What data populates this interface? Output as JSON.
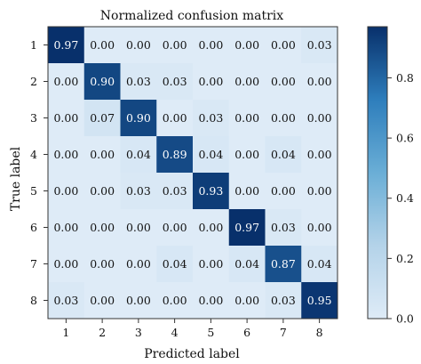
{
  "chart_data": {
    "type": "heatmap",
    "title": "Normalized confusion matrix",
    "xlabel": "Predicted label",
    "ylabel": "True label",
    "x_tick_labels": [
      "1",
      "2",
      "3",
      "4",
      "5",
      "6",
      "7",
      "8"
    ],
    "y_tick_labels": [
      "1",
      "2",
      "3",
      "4",
      "5",
      "6",
      "7",
      "8"
    ],
    "values": [
      [
        0.97,
        0.0,
        0.0,
        0.0,
        0.0,
        0.0,
        0.0,
        0.03
      ],
      [
        0.0,
        0.9,
        0.03,
        0.03,
        0.0,
        0.0,
        0.0,
        0.0
      ],
      [
        0.0,
        0.07,
        0.9,
        0.0,
        0.03,
        0.0,
        0.0,
        0.0
      ],
      [
        0.0,
        0.0,
        0.04,
        0.89,
        0.04,
        0.0,
        0.04,
        0.0
      ],
      [
        0.0,
        0.0,
        0.03,
        0.03,
        0.93,
        0.0,
        0.0,
        0.0
      ],
      [
        0.0,
        0.0,
        0.0,
        0.0,
        0.0,
        0.97,
        0.03,
        0.0
      ],
      [
        0.0,
        0.0,
        0.0,
        0.04,
        0.0,
        0.04,
        0.87,
        0.04
      ],
      [
        0.03,
        0.0,
        0.0,
        0.0,
        0.0,
        0.0,
        0.03,
        0.95
      ]
    ],
    "cell_labels": [
      [
        "0.97",
        "0.00",
        "0.00",
        "0.00",
        "0.00",
        "0.00",
        "0.00",
        "0.03"
      ],
      [
        "0.00",
        "0.90",
        "0.03",
        "0.03",
        "0.00",
        "0.00",
        "0.00",
        "0.00"
      ],
      [
        "0.00",
        "0.07",
        "0.90",
        "0.00",
        "0.03",
        "0.00",
        "0.00",
        "0.00"
      ],
      [
        "0.00",
        "0.00",
        "0.04",
        "0.89",
        "0.04",
        "0.00",
        "0.04",
        "0.00"
      ],
      [
        "0.00",
        "0.00",
        "0.03",
        "0.03",
        "0.93",
        "0.00",
        "0.00",
        "0.00"
      ],
      [
        "0.00",
        "0.00",
        "0.00",
        "0.00",
        "0.00",
        "0.97",
        "0.03",
        "0.00"
      ],
      [
        "0.00",
        "0.00",
        "0.00",
        "0.04",
        "0.00",
        "0.04",
        "0.87",
        "0.04"
      ],
      [
        "0.03",
        "0.00",
        "0.00",
        "0.00",
        "0.00",
        "0.00",
        "0.03",
        "0.95"
      ]
    ],
    "colormap": "Blues",
    "colorbar": {
      "range": [
        0.0,
        0.97
      ],
      "ticks": [
        0.0,
        0.2,
        0.4,
        0.6,
        0.8
      ],
      "tick_labels": [
        "0.0",
        "0.2",
        "0.4",
        "0.6",
        "0.8"
      ]
    },
    "colors": {
      "low": "#dae8f6",
      "high": "#08306b",
      "text_dark": "#111111",
      "text_light": "#ffffff"
    }
  }
}
